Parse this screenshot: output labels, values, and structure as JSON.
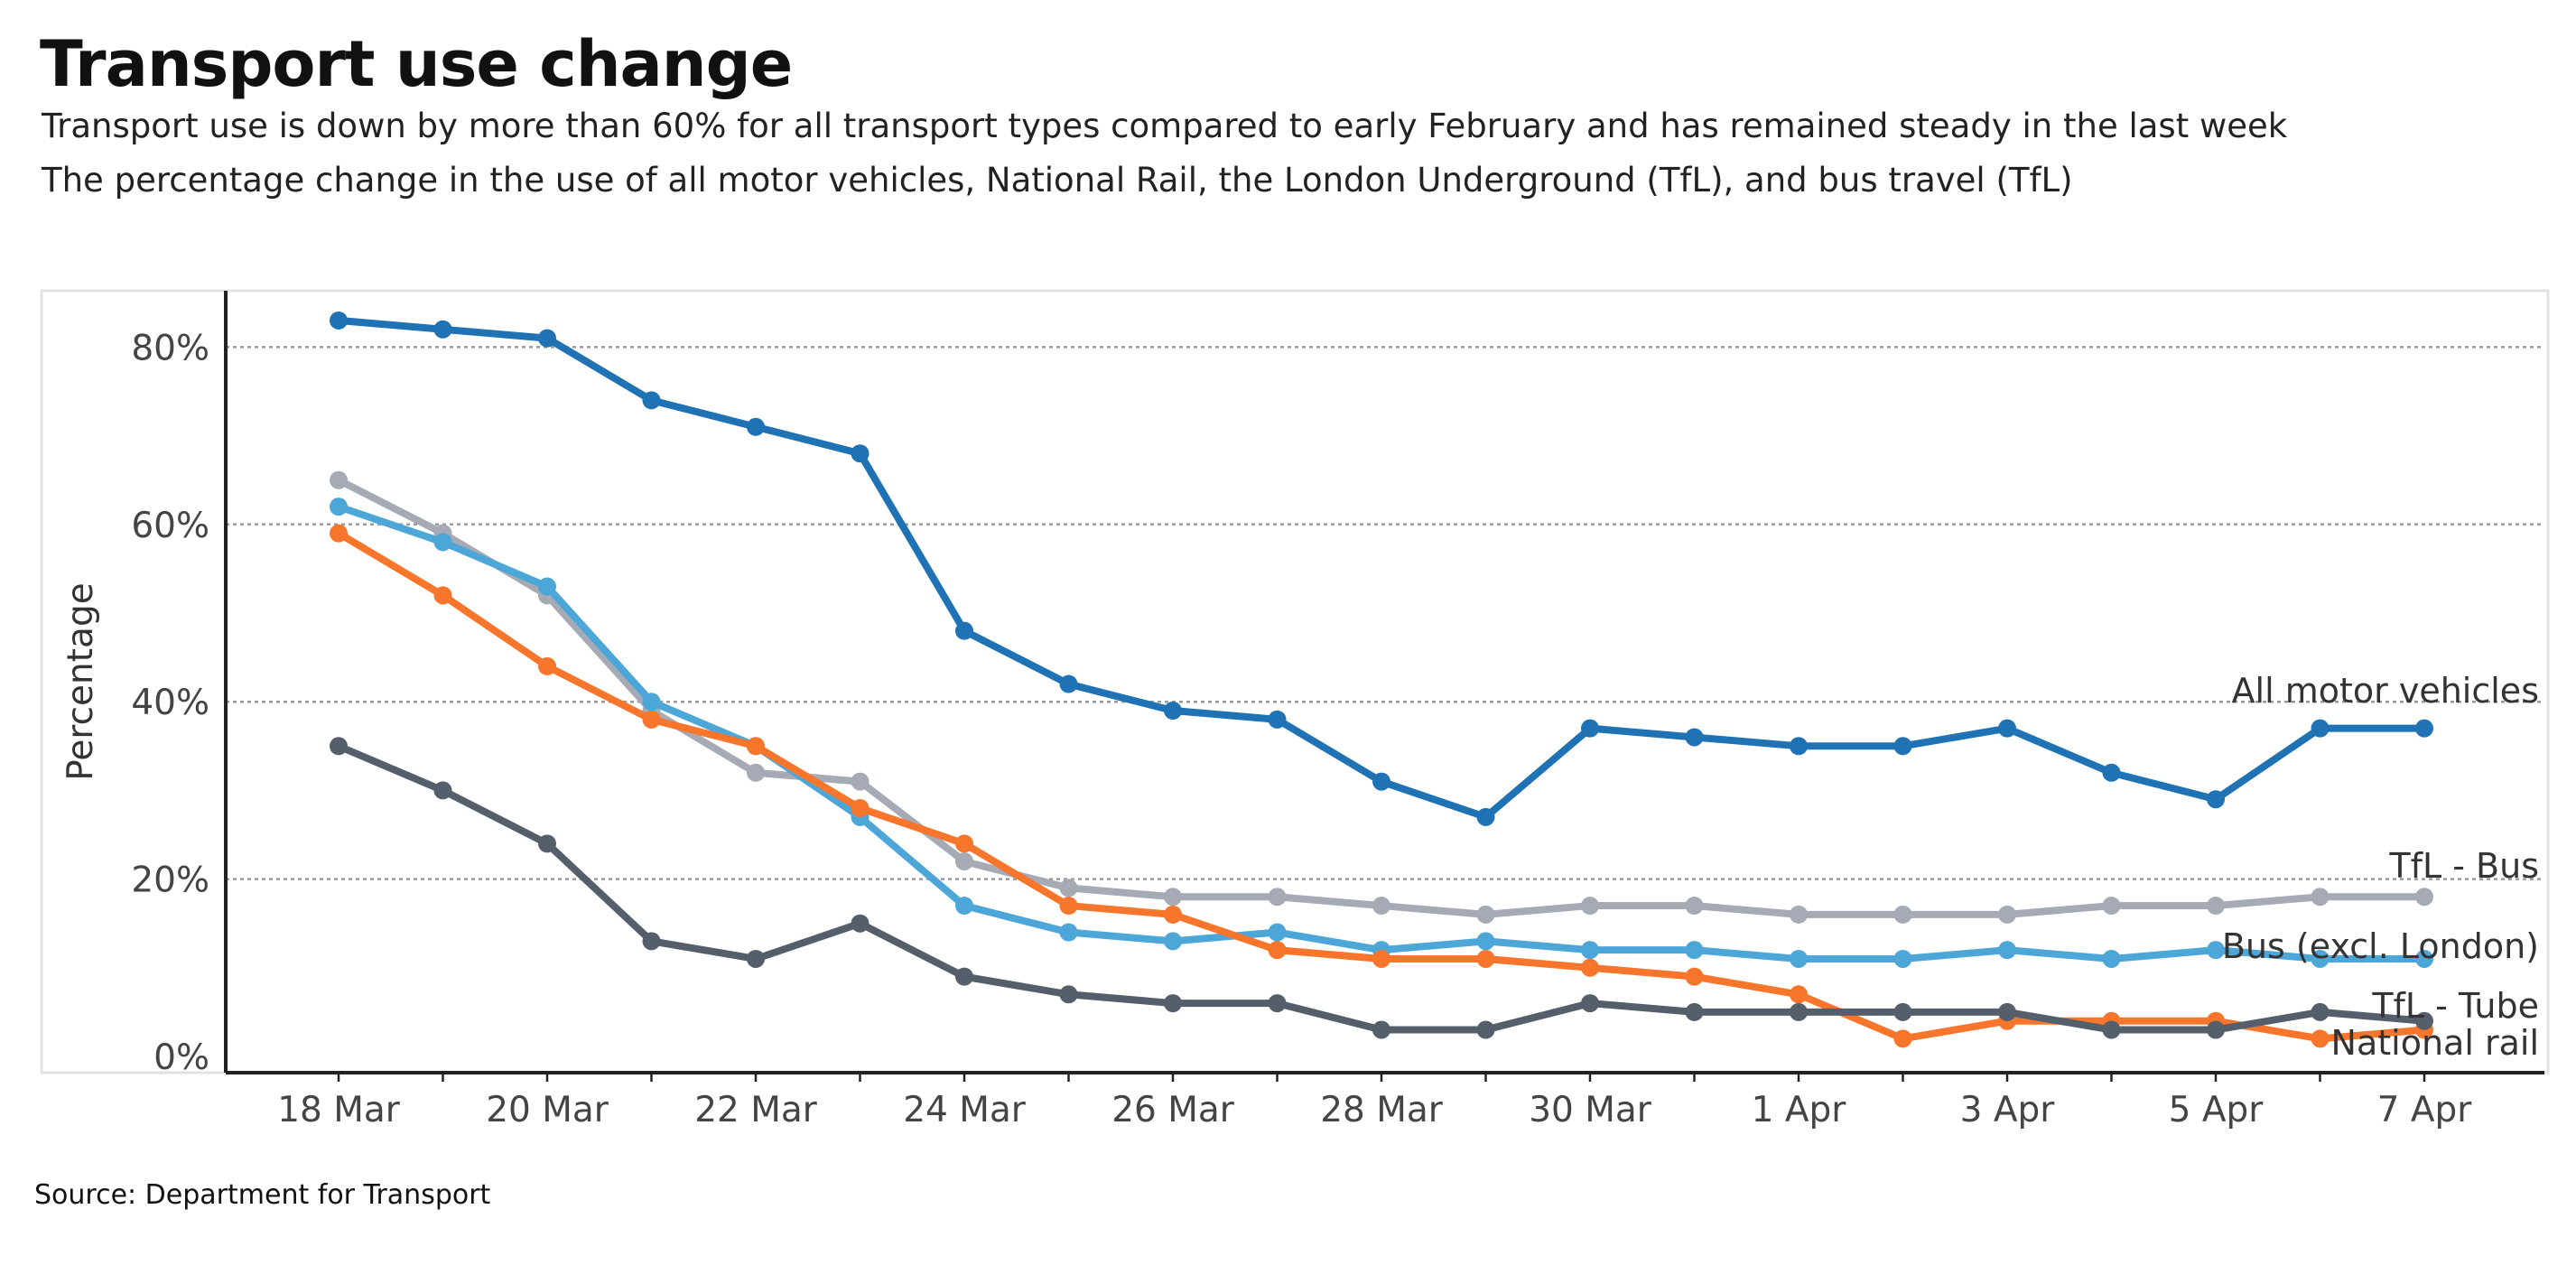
{
  "title": "Transport use change",
  "subtitle1": "Transport use is down by more than 60% for all transport types compared to early February and has remained steady in the last week",
  "subtitle2": "The percentage change in the use of all motor vehicles, National Rail, the London Underground (TfL), and bus travel (TfL)",
  "source": "Source: Department for Transport",
  "chart_data": {
    "type": "line",
    "ylabel": "Percentage",
    "xlabel": "",
    "ylim": [
      -2,
      88
    ],
    "ytick_values": [
      0,
      20,
      40,
      60,
      80
    ],
    "ytick_labels": [
      "0%",
      "20%",
      "40%",
      "60%",
      "80%"
    ],
    "x": [
      "18 Mar",
      "19 Mar",
      "20 Mar",
      "21 Mar",
      "22 Mar",
      "23 Mar",
      "24 Mar",
      "25 Mar",
      "26 Mar",
      "27 Mar",
      "28 Mar",
      "29 Mar",
      "30 Mar",
      "31 Mar",
      "1 Apr",
      "2 Apr",
      "3 Apr",
      "4 Apr",
      "5 Apr",
      "6 Apr",
      "7 Apr"
    ],
    "xtick_labels": [
      "18 Mar",
      "20 Mar",
      "22 Mar",
      "24 Mar",
      "26 Mar",
      "28 Mar",
      "30 Mar",
      "1 Apr",
      "3 Apr",
      "5 Apr",
      "7 Apr"
    ],
    "grid": "horizontal dotted",
    "legend": "direct labels at right end",
    "series": [
      {
        "name": "All motor vehicles",
        "color": "#1f72b4",
        "values": [
          83,
          82,
          81,
          74,
          71,
          68,
          48,
          42,
          39,
          38,
          31,
          27,
          37,
          36,
          35,
          35,
          37,
          32,
          29,
          37,
          37
        ]
      },
      {
        "name": "TfL - Bus",
        "color": "#a5aab5",
        "values": [
          65,
          59,
          52,
          39,
          32,
          31,
          22,
          19,
          18,
          18,
          17,
          16,
          17,
          17,
          16,
          16,
          16,
          17,
          17,
          18,
          18
        ]
      },
      {
        "name": "Bus (excl. London)",
        "color": "#4da6d8",
        "values": [
          62,
          58,
          53,
          40,
          35,
          27,
          17,
          14,
          13,
          14,
          12,
          13,
          12,
          12,
          11,
          11,
          12,
          11,
          12,
          11,
          11
        ]
      },
      {
        "name": "National rail",
        "color": "#f7762c",
        "values": [
          59,
          52,
          44,
          38,
          35,
          28,
          24,
          17,
          16,
          12,
          11,
          11,
          10,
          9,
          7,
          2,
          4,
          4,
          4,
          2,
          3
        ]
      },
      {
        "name": "TfL - Tube",
        "color": "#555e6b",
        "values": [
          35,
          30,
          24,
          13,
          11,
          15,
          9,
          7,
          6,
          6,
          3,
          3,
          6,
          5,
          5,
          5,
          5,
          3,
          3,
          5,
          4
        ]
      }
    ]
  }
}
